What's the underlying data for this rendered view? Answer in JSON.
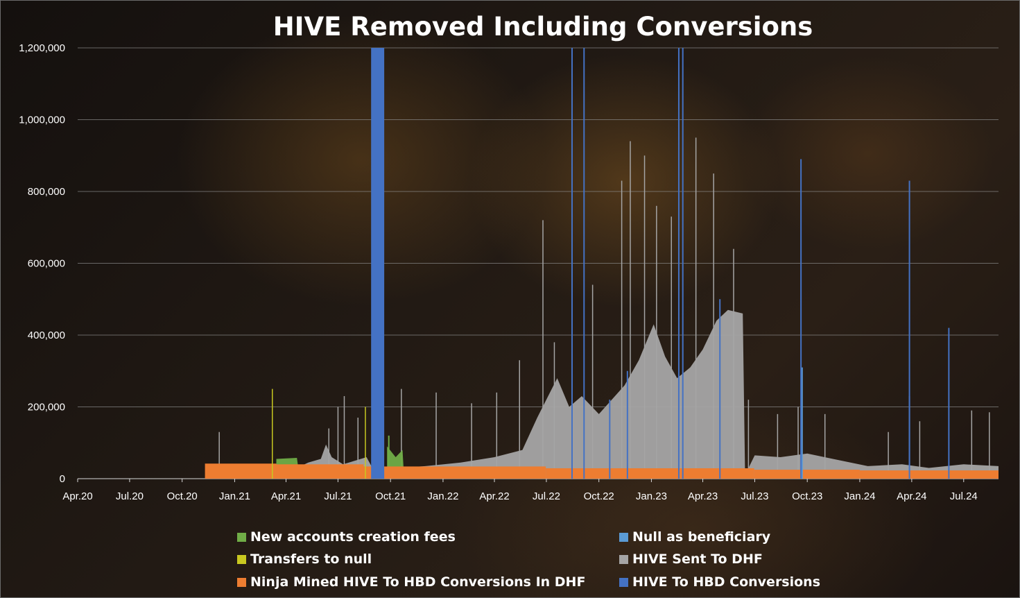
{
  "chart_data": {
    "type": "bar",
    "title": "HIVE Removed Including Conversions",
    "xlabel": "",
    "ylabel": "",
    "ylim": [
      0,
      1200000
    ],
    "x_range": [
      "2020-04-01",
      "2024-08-31"
    ],
    "grid": true,
    "legend_placement": "bottom",
    "y_ticks": [
      "0",
      "200,000",
      "400,000",
      "600,000",
      "800,000",
      "1,000,000",
      "1,200,000"
    ],
    "y_tick_values": [
      0,
      200000,
      400000,
      600000,
      800000,
      1000000,
      1200000
    ],
    "x_ticks": [
      "Apr.20",
      "Jul.20",
      "Oct.20",
      "Jan.21",
      "Apr.21",
      "Jul.21",
      "Oct.21",
      "Jan.22",
      "Apr.22",
      "Jul.22",
      "Oct.22",
      "Jan.23",
      "Apr.23",
      "Jul.23",
      "Oct.23",
      "Jan.24",
      "Apr.24",
      "Jul.24"
    ],
    "x_tick_dates": [
      "2020-04-01",
      "2020-07-01",
      "2020-10-01",
      "2021-01-01",
      "2021-04-01",
      "2021-07-01",
      "2021-10-01",
      "2022-01-01",
      "2022-04-01",
      "2022-07-01",
      "2022-10-01",
      "2023-01-01",
      "2023-04-01",
      "2023-07-01",
      "2023-10-01",
      "2024-01-01",
      "2024-04-01",
      "2024-07-01"
    ],
    "series": [
      {
        "name": "Ninja Mined HIVE To HBD Conversions In DHF",
        "color": "#ed7d31",
        "segments": [
          {
            "start": "2020-11-10",
            "end": "2021-03-15",
            "value": 42000
          },
          {
            "start": "2021-03-15",
            "end": "2021-08-15",
            "value": 40000
          },
          {
            "start": "2021-08-15",
            "end": "2022-06-30",
            "value": 34000
          },
          {
            "start": "2022-06-30",
            "end": "2023-06-30",
            "value": 29000
          },
          {
            "start": "2023-06-30",
            "end": "2024-01-01",
            "value": 25000
          },
          {
            "start": "2024-01-01",
            "end": "2024-08-31",
            "value": 23000
          }
        ]
      },
      {
        "name": "HIVE Sent To DHF",
        "color": "#a5a5a5",
        "envelope": [
          [
            "2021-03-25",
            0
          ],
          [
            "2021-03-25",
            22000
          ],
          [
            "2021-04-20",
            30000
          ],
          [
            "2021-05-10",
            45000
          ],
          [
            "2021-06-01",
            55000
          ],
          [
            "2021-06-10",
            95000
          ],
          [
            "2021-06-20",
            60000
          ],
          [
            "2021-07-10",
            40000
          ],
          [
            "2021-08-20",
            60000
          ],
          [
            "2021-09-01",
            25000
          ],
          [
            "2021-10-15",
            30000
          ],
          [
            "2021-12-01",
            35000
          ],
          [
            "2022-02-01",
            45000
          ],
          [
            "2022-04-01",
            60000
          ],
          [
            "2022-05-20",
            80000
          ],
          [
            "2022-06-15",
            170000
          ],
          [
            "2022-07-01",
            220000
          ],
          [
            "2022-07-20",
            280000
          ],
          [
            "2022-08-10",
            200000
          ],
          [
            "2022-09-01",
            230000
          ],
          [
            "2022-10-01",
            180000
          ],
          [
            "2022-11-15",
            260000
          ],
          [
            "2022-12-10",
            330000
          ],
          [
            "2023-01-05",
            430000
          ],
          [
            "2023-01-25",
            340000
          ],
          [
            "2023-02-15",
            280000
          ],
          [
            "2023-03-10",
            310000
          ],
          [
            "2023-04-01",
            360000
          ],
          [
            "2023-04-25",
            440000
          ],
          [
            "2023-05-15",
            470000
          ],
          [
            "2023-06-10",
            460000
          ],
          [
            "2023-06-14",
            10000
          ],
          [
            "2023-07-01",
            65000
          ],
          [
            "2023-08-15",
            60000
          ],
          [
            "2023-10-01",
            70000
          ],
          [
            "2023-11-15",
            55000
          ],
          [
            "2024-01-15",
            35000
          ],
          [
            "2024-03-15",
            40000
          ],
          [
            "2024-05-01",
            30000
          ],
          [
            "2024-07-01",
            40000
          ],
          [
            "2024-08-31",
            35000
          ],
          [
            "2024-08-31",
            0
          ]
        ],
        "spikes": [
          [
            "2020-12-05",
            130000
          ],
          [
            "2021-06-15",
            140000
          ],
          [
            "2021-07-01",
            200000
          ],
          [
            "2021-07-12",
            230000
          ],
          [
            "2021-08-05",
            170000
          ],
          [
            "2021-10-20",
            250000
          ],
          [
            "2021-12-20",
            240000
          ],
          [
            "2022-02-20",
            210000
          ],
          [
            "2022-04-05",
            240000
          ],
          [
            "2022-05-15",
            330000
          ],
          [
            "2022-06-25",
            720000
          ],
          [
            "2022-07-15",
            380000
          ],
          [
            "2022-08-15",
            620000
          ],
          [
            "2022-09-20",
            540000
          ],
          [
            "2022-11-10",
            830000
          ],
          [
            "2022-11-25",
            940000
          ],
          [
            "2022-12-20",
            900000
          ],
          [
            "2023-01-10",
            760000
          ],
          [
            "2023-02-05",
            730000
          ],
          [
            "2023-03-20",
            950000
          ],
          [
            "2023-04-20",
            850000
          ],
          [
            "2023-05-25",
            640000
          ],
          [
            "2023-06-20",
            220000
          ],
          [
            "2023-08-10",
            180000
          ],
          [
            "2023-09-15",
            200000
          ],
          [
            "2023-11-01",
            180000
          ],
          [
            "2024-02-20",
            130000
          ],
          [
            "2024-04-15",
            160000
          ],
          [
            "2024-07-15",
            190000
          ],
          [
            "2024-08-15",
            185000
          ]
        ]
      },
      {
        "name": "New accounts creation fees",
        "color": "#70ad47",
        "envelope": [
          [
            "2021-03-15",
            0
          ],
          [
            "2021-03-15",
            55000
          ],
          [
            "2021-04-20",
            58000
          ],
          [
            "2021-04-25",
            0
          ],
          [
            "2021-09-25",
            0
          ],
          [
            "2021-09-25",
            90000
          ],
          [
            "2021-10-10",
            60000
          ],
          [
            "2021-10-22",
            80000
          ],
          [
            "2021-10-25",
            0
          ]
        ],
        "spikes": [
          [
            "2021-09-08",
            280000
          ],
          [
            "2021-09-28",
            120000
          ]
        ]
      },
      {
        "name": "Transfers to null",
        "color": "#c8c820",
        "envelope": [],
        "spikes": [
          [
            "2021-03-08",
            250000
          ],
          [
            "2021-08-18",
            200000
          ]
        ]
      },
      {
        "name": "Null as beneficiary",
        "color": "#5b9bd5",
        "envelope": [],
        "spikes": [
          [
            "2023-09-22",
            310000
          ],
          [
            "2024-03-28",
            230000
          ]
        ]
      },
      {
        "name": "HIVE To HBD Conversions",
        "color": "#4472c4",
        "blocks": [
          {
            "start": "2021-08-28",
            "end": "2021-09-20",
            "value": 1200000
          }
        ],
        "spikes": [
          [
            "2022-08-15",
            1200000
          ],
          [
            "2022-09-05",
            1200000
          ],
          [
            "2022-10-20",
            220000
          ],
          [
            "2022-11-20",
            300000
          ],
          [
            "2023-02-18",
            1200000
          ],
          [
            "2023-02-25",
            1200000
          ],
          [
            "2023-05-01",
            500000
          ],
          [
            "2023-09-20",
            890000
          ],
          [
            "2024-03-28",
            830000
          ],
          [
            "2024-06-05",
            420000
          ]
        ]
      }
    ]
  },
  "legend": {
    "items": [
      {
        "label": "New accounts creation fees",
        "color": "#70ad47"
      },
      {
        "label": "Null as beneficiary",
        "color": "#5b9bd5"
      },
      {
        "label": "Transfers to null",
        "color": "#c8c820"
      },
      {
        "label": "HIVE Sent To DHF",
        "color": "#a5a5a5"
      },
      {
        "label": "Ninja Mined HIVE To HBD Conversions In DHF",
        "color": "#ed7d31"
      },
      {
        "label": "HIVE To HBD Conversions",
        "color": "#4472c4"
      }
    ]
  }
}
